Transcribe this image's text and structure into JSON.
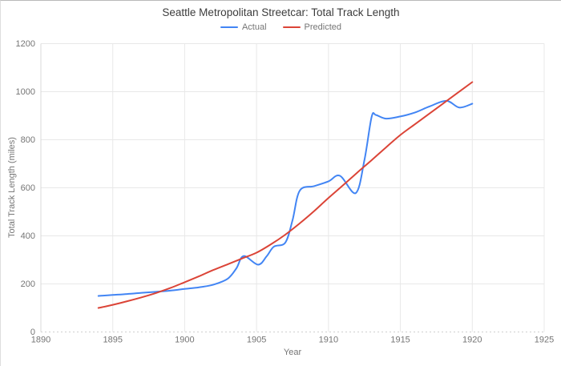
{
  "chart_data": {
    "type": "line",
    "title": "Seattle Metropolitan Streetcar: Total Track Length",
    "xlabel": "Year",
    "ylabel": "Total Track Length (miles)",
    "xlim": [
      1890,
      1925
    ],
    "ylim": [
      0,
      1200
    ],
    "x_ticks": [
      1890,
      1895,
      1900,
      1905,
      1910,
      1915,
      1920,
      1925
    ],
    "y_ticks": [
      0,
      200,
      400,
      600,
      800,
      1000,
      1200
    ],
    "grid": true,
    "legend_position": "top",
    "axis_text_color": "#757575",
    "grid_color": "#e8e8e8",
    "baseline_color": "#cfcfcf",
    "series": [
      {
        "name": "Actual",
        "color": "#4285f4",
        "points": [
          [
            1894,
            150
          ],
          [
            1895,
            154
          ],
          [
            1896,
            158
          ],
          [
            1897,
            163
          ],
          [
            1898,
            167
          ],
          [
            1899,
            172
          ],
          [
            1900,
            179
          ],
          [
            1901,
            186
          ],
          [
            1902,
            197
          ],
          [
            1903,
            222
          ],
          [
            1903.6,
            265
          ],
          [
            1904.1,
            316
          ],
          [
            1905.1,
            280
          ],
          [
            1905.7,
            315
          ],
          [
            1906.2,
            355
          ],
          [
            1907,
            372
          ],
          [
            1907.5,
            465
          ],
          [
            1908,
            588
          ],
          [
            1909,
            607
          ],
          [
            1910,
            627
          ],
          [
            1910.8,
            650
          ],
          [
            1911.9,
            578
          ],
          [
            1912.5,
            715
          ],
          [
            1913,
            895
          ],
          [
            1913.3,
            903
          ],
          [
            1914,
            888
          ],
          [
            1915,
            897
          ],
          [
            1916,
            913
          ],
          [
            1917,
            938
          ],
          [
            1918.2,
            962
          ],
          [
            1919.1,
            934
          ],
          [
            1920,
            950
          ]
        ]
      },
      {
        "name": "Predicted",
        "color": "#db4437",
        "points": [
          [
            1894,
            100
          ],
          [
            1895,
            113
          ],
          [
            1896,
            128
          ],
          [
            1897,
            144
          ],
          [
            1898,
            162
          ],
          [
            1899,
            183
          ],
          [
            1900,
            207
          ],
          [
            1901,
            232
          ],
          [
            1902,
            258
          ],
          [
            1903,
            282
          ],
          [
            1904,
            306
          ],
          [
            1905,
            330
          ],
          [
            1906,
            365
          ],
          [
            1907,
            405
          ],
          [
            1908,
            452
          ],
          [
            1909,
            503
          ],
          [
            1910,
            558
          ],
          [
            1911,
            610
          ],
          [
            1912,
            663
          ],
          [
            1913,
            715
          ],
          [
            1914,
            768
          ],
          [
            1915,
            820
          ],
          [
            1916,
            864
          ],
          [
            1917,
            908
          ],
          [
            1918,
            952
          ],
          [
            1919,
            996
          ],
          [
            1920,
            1040
          ]
        ]
      }
    ]
  }
}
